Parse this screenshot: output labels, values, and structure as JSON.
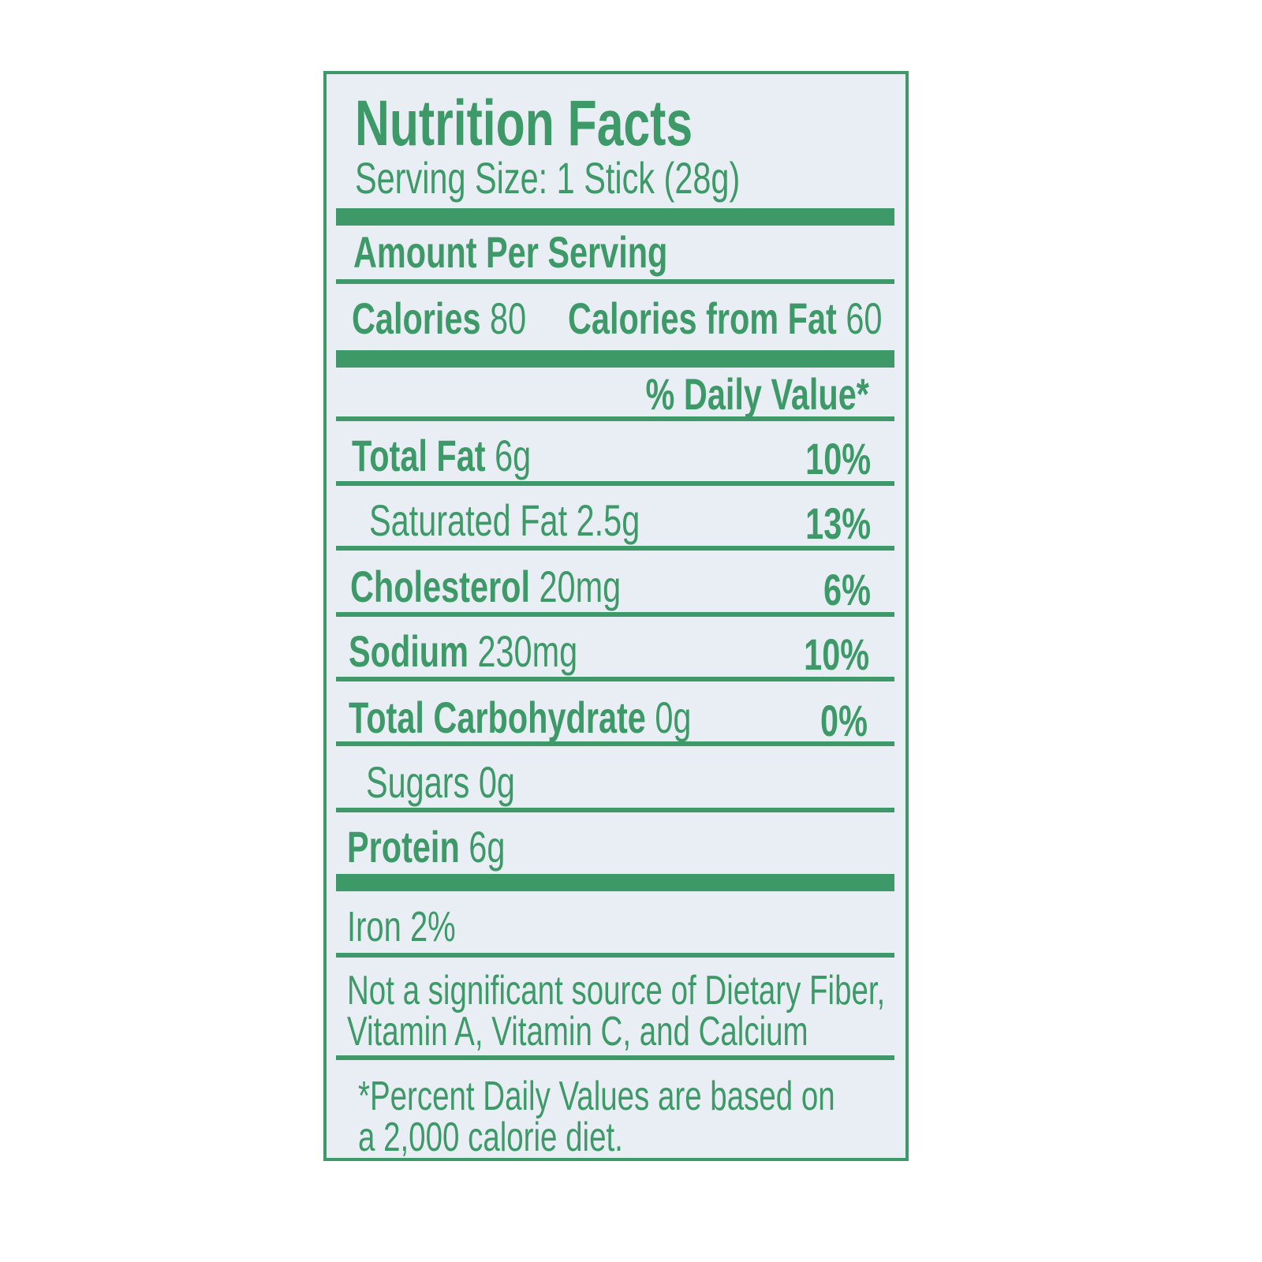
{
  "title": "Nutrition Facts",
  "serving_size": "Serving Size: 1 Stick (28g)",
  "amount_per_serving": "Amount Per Serving",
  "calories": {
    "label": "Calories",
    "value": "80",
    "fat_label": "Calories from Fat",
    "fat_value": "60"
  },
  "daily_value_header": "% Daily Value*",
  "nutrients": [
    {
      "label": "Total Fat",
      "amount": "6g",
      "dv": "10%"
    },
    {
      "label": "Saturated Fat",
      "amount": "2.5g",
      "dv": "13%"
    },
    {
      "label": "Cholesterol",
      "amount": "20mg",
      "dv": "6%"
    },
    {
      "label": "Sodium",
      "amount": "230mg",
      "dv": "10%"
    },
    {
      "label": "Total Carbohydrate",
      "amount": "0g",
      "dv": "0%"
    },
    {
      "label": "Sugars",
      "amount": "0g",
      "dv": ""
    },
    {
      "label": "Protein",
      "amount": "6g",
      "dv": ""
    }
  ],
  "iron": "Iron 2%",
  "not_significant": [
    "Not a significant source of Dietary Fiber,",
    "Vitamin A, Vitamin C, and Calcium"
  ],
  "footnote": [
    "*Percent Daily Values are based on",
    "a 2,000 calorie diet."
  ],
  "colors": {
    "ink": "#3d9a68",
    "background": "#e9eef4"
  }
}
